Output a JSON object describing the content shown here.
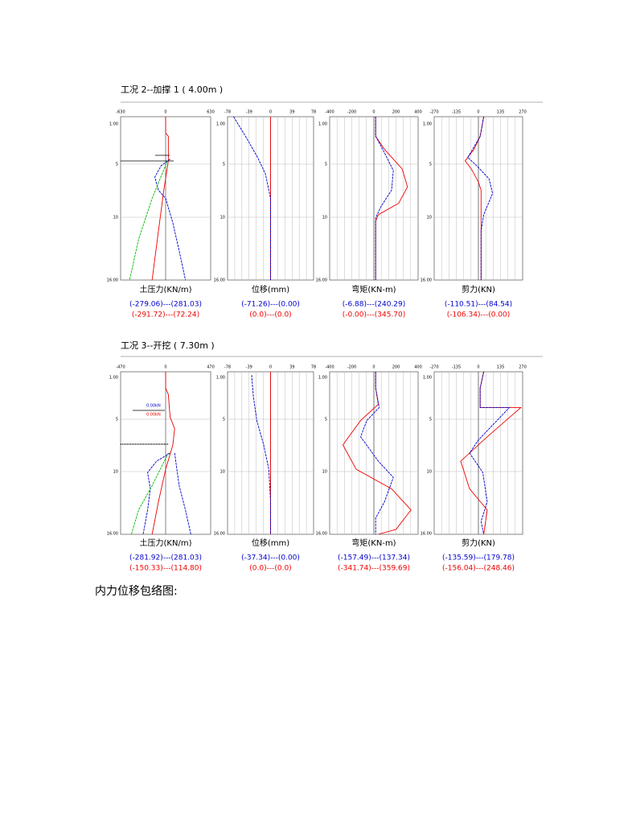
{
  "sections": [
    {
      "title": "工况 2--加撑 1 ( 4.00m )",
      "depths": [
        "1.00",
        "5",
        "10",
        "16.00"
      ],
      "panels": [
        {
          "xticks": [
            "-630",
            "0",
            "630"
          ],
          "title": "土压力(KN/m)",
          "blue": "(-279.06)---(281.03)",
          "red": "(-291.72)---(72.24)"
        },
        {
          "xticks": [
            "-78",
            "-39",
            "0",
            "39",
            "78"
          ],
          "title": "位移(mm)",
          "blue": "(-71.26)---(0.00)",
          "red": "(0.0)---(0.0)"
        },
        {
          "xticks": [
            "-400",
            "-200",
            "0",
            "200",
            "400"
          ],
          "title": "弯矩(KN-m)",
          "blue": "(-6.88)---(240.29)",
          "red": "(-0.00)---(345.70)"
        },
        {
          "xticks": [
            "-270",
            "-135",
            "0",
            "135",
            "270"
          ],
          "title": "剪力(KN)",
          "blue": "(-110.51)---(84.54)",
          "red": "(-106.34)---(0.00)"
        }
      ]
    },
    {
      "title": "工况 3--开挖 ( 7.30m )",
      "depths": [
        "1.00",
        "5",
        "10",
        "16.00"
      ],
      "notes": [
        "0.00kN",
        "0.00kN"
      ],
      "panels": [
        {
          "xticks": [
            "-470",
            "0",
            "470"
          ],
          "title": "土压力(KN/m)",
          "blue": "(-281.92)---(281.03)",
          "red": "(-150.33)---(114.80)"
        },
        {
          "xticks": [
            "-78",
            "-39",
            "0",
            "39",
            "78"
          ],
          "title": "位移(mm)",
          "blue": "(-37.34)---(0.00)",
          "red": "(0.0)---(0.0)"
        },
        {
          "xticks": [
            "-400",
            "-200",
            "0",
            "200",
            "400"
          ],
          "title": "弯矩(KN-m)",
          "blue": "(-157.49)---(137.34)",
          "red": "(-341.74)---(359.69)"
        },
        {
          "xticks": [
            "-270",
            "-135",
            "0",
            "135",
            "270"
          ],
          "title": "剪力(KN)",
          "blue": "(-135.59)---(179.78)",
          "red": "(-156.04)---(248.46)"
        }
      ]
    }
  ],
  "footer": "内力位移包络图:"
}
